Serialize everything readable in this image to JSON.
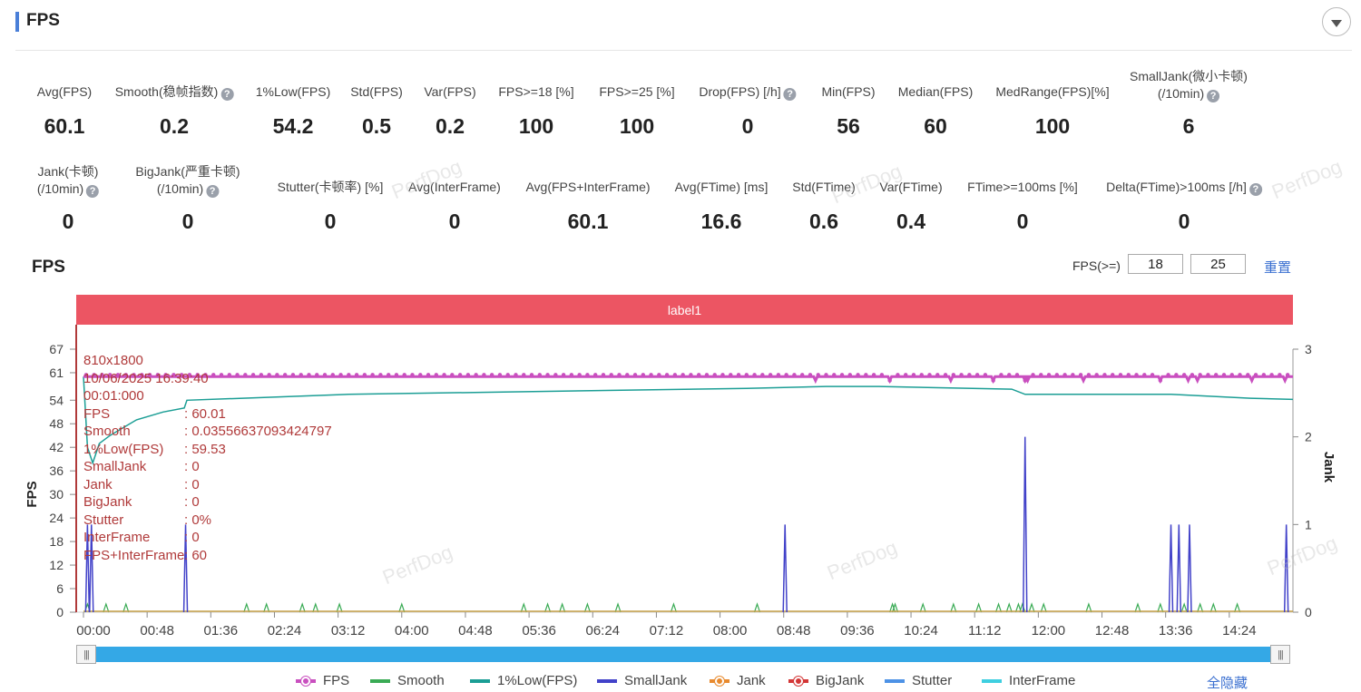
{
  "header": {
    "title": "FPS"
  },
  "metrics_row1": [
    {
      "label": "Avg(FPS)",
      "value": "60.1",
      "help": false
    },
    {
      "label": "Smooth(稳帧指数)",
      "value": "0.2",
      "help": true
    },
    {
      "label": "1%Low(FPS)",
      "value": "54.2",
      "help": false
    },
    {
      "label": "Std(FPS)",
      "value": "0.5",
      "help": false
    },
    {
      "label": "Var(FPS)",
      "value": "0.2",
      "help": false
    },
    {
      "label": "FPS>=18 [%]",
      "value": "100",
      "help": false
    },
    {
      "label": "FPS>=25 [%]",
      "value": "100",
      "help": false
    },
    {
      "label": "Drop(FPS) [/h]",
      "value": "0",
      "help": true
    },
    {
      "label": "Min(FPS)",
      "value": "56",
      "help": false
    },
    {
      "label": "Median(FPS)",
      "value": "60",
      "help": false
    },
    {
      "label": "MedRange(FPS)[%]",
      "value": "100",
      "help": false
    },
    {
      "label": "SmallJank(微小卡顿)",
      "label2": "(/10min)",
      "value": "6",
      "help": true
    }
  ],
  "metrics_row2": [
    {
      "label": "Jank(卡顿)",
      "label2": "(/10min)",
      "value": "0",
      "help": true
    },
    {
      "label": "BigJank(严重卡顿)",
      "label2": "(/10min)",
      "value": "0",
      "help": true
    },
    {
      "label": "Stutter(卡顿率) [%]",
      "value": "0",
      "help": false
    },
    {
      "label": "Avg(InterFrame)",
      "value": "0",
      "help": false
    },
    {
      "label": "Avg(FPS+InterFrame)",
      "value": "60.1",
      "help": false
    },
    {
      "label": "Avg(FTime) [ms]",
      "value": "16.6",
      "help": false
    },
    {
      "label": "Std(FTime)",
      "value": "0.6",
      "help": false
    },
    {
      "label": "Var(FTime)",
      "value": "0.4",
      "help": false
    },
    {
      "label": "FTime>=100ms [%]",
      "value": "0",
      "help": false
    },
    {
      "label": "Delta(FTime)>100ms [/h]",
      "value": "0",
      "help": true
    }
  ],
  "chart_section": {
    "title": "FPS",
    "threshold_label": "FPS(>=)",
    "threshold1": "18",
    "threshold2": "25",
    "reset_label": "重置",
    "band_label": "label1",
    "watermark": "PerfDog",
    "hide_all_label": "全隐藏"
  },
  "tooltip": {
    "resolution": "810x1800",
    "datetime": "10/06/2025 16:39:40",
    "elapsed": "00:01:000",
    "rows": [
      {
        "k": "FPS",
        "v": ": 60.01"
      },
      {
        "k": "Smooth",
        "v": ": 0.03556637093424797"
      },
      {
        "k": "1%Low(FPS)",
        "v": ": 59.53"
      },
      {
        "k": "SmallJank",
        "v": ": 0"
      },
      {
        "k": "Jank",
        "v": ": 0"
      },
      {
        "k": "BigJank",
        "v": ": 0"
      },
      {
        "k": "Stutter",
        "v": ": 0%"
      },
      {
        "k": "InterFrame",
        "v": ": 0"
      },
      {
        "k": "FPS+InterFrame",
        "v": ": 60"
      }
    ]
  },
  "chart_data": {
    "type": "line",
    "y_axis_left": {
      "label": "FPS",
      "ticks": [
        0,
        6,
        12,
        18,
        24,
        30,
        36,
        42,
        48,
        54,
        61,
        67
      ],
      "range": [
        0,
        67
      ]
    },
    "y_axis_right": {
      "label": "Jank",
      "ticks": [
        0,
        1,
        2,
        3
      ],
      "range": [
        0,
        3
      ]
    },
    "x_axis": {
      "ticks": [
        "00:00",
        "00:48",
        "01:36",
        "02:24",
        "03:12",
        "04:00",
        "04:48",
        "05:36",
        "06:24",
        "07:12",
        "08:00",
        "08:48",
        "09:36",
        "10:24",
        "11:12",
        "12:00",
        "12:48",
        "13:36",
        "14:24"
      ],
      "range_seconds": [
        0,
        912
      ]
    },
    "legend": [
      {
        "name": "FPS",
        "color": "#c94fbf",
        "marker": true
      },
      {
        "name": "Smooth",
        "color": "#3aab55",
        "marker": false
      },
      {
        "name": "1%Low(FPS)",
        "color": "#1b9e95",
        "marker": false
      },
      {
        "name": "SmallJank",
        "color": "#4242c9",
        "marker": false
      },
      {
        "name": "Jank",
        "color": "#e88a2e",
        "marker": true
      },
      {
        "name": "BigJank",
        "color": "#d33636",
        "marker": true
      },
      {
        "name": "Stutter",
        "color": "#4d92e6",
        "marker": false
      },
      {
        "name": "InterFrame",
        "color": "#3fcfe0",
        "marker": false
      }
    ],
    "fps_series": {
      "typical": 60,
      "dips": [
        [
          552,
          59
        ],
        [
          608,
          59
        ],
        [
          654,
          59
        ],
        [
          686,
          59
        ],
        [
          710,
          59
        ],
        [
          712,
          59
        ],
        [
          754,
          59
        ],
        [
          812,
          59
        ],
        [
          833,
          59
        ],
        [
          840,
          59
        ],
        [
          881,
          59
        ],
        [
          906,
          59
        ]
      ]
    },
    "one_percent_low_series": [
      [
        0,
        60
      ],
      [
        3,
        42
      ],
      [
        7,
        38
      ],
      [
        12,
        43
      ],
      [
        20,
        45
      ],
      [
        40,
        49
      ],
      [
        60,
        51
      ],
      [
        76,
        52
      ],
      [
        78,
        54
      ],
      [
        120,
        54.5
      ],
      [
        200,
        55.5
      ],
      [
        300,
        56
      ],
      [
        400,
        56.5
      ],
      [
        500,
        57
      ],
      [
        560,
        57.5
      ],
      [
        600,
        57.5
      ],
      [
        700,
        56.8
      ],
      [
        710,
        55.5
      ],
      [
        740,
        55.5
      ],
      [
        820,
        55.5
      ],
      [
        880,
        54.5
      ],
      [
        912,
        54.2
      ]
    ],
    "smalljank_spikes": [
      [
        3,
        1
      ],
      [
        6,
        1
      ],
      [
        77,
        1
      ],
      [
        529,
        1
      ],
      [
        710,
        2
      ],
      [
        820,
        1
      ],
      [
        826,
        1
      ],
      [
        834,
        1
      ],
      [
        907,
        1
      ]
    ],
    "smooth_spikes": [
      3,
      17,
      32,
      123,
      138,
      165,
      175,
      193,
      240,
      332,
      350,
      361,
      380,
      403,
      445,
      508,
      610,
      612,
      633,
      656,
      675,
      690,
      698,
      705,
      708,
      715,
      724,
      758,
      795,
      812,
      830,
      842,
      852,
      870
    ]
  }
}
